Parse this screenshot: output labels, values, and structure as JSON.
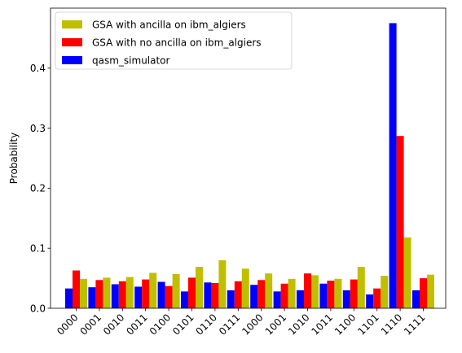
{
  "chart_data": {
    "type": "bar",
    "title": "",
    "xlabel": "",
    "ylabel": "Probability",
    "ylim": [
      0,
      0.5
    ],
    "yticks": [
      0.0,
      0.1,
      0.2,
      0.3,
      0.4
    ],
    "ytick_labels": [
      "0.0",
      "0.1",
      "0.2",
      "0.3",
      "0.4"
    ],
    "grid": false,
    "legend_position": "top-left",
    "categories": [
      "0000",
      "0001",
      "0010",
      "0011",
      "0100",
      "0101",
      "0110",
      "0111",
      "1000",
      "1001",
      "1010",
      "1011",
      "1100",
      "1101",
      "1110",
      "1111"
    ],
    "series": [
      {
        "name": "qasm_simulator",
        "color": "#0000ff",
        "values": [
          0.033,
          0.035,
          0.04,
          0.036,
          0.044,
          0.028,
          0.043,
          0.03,
          0.039,
          0.028,
          0.03,
          0.041,
          0.03,
          0.023,
          0.475,
          0.03
        ]
      },
      {
        "name": "GSA with no ancilla on ibm_algiers",
        "color": "#ff0000",
        "values": [
          0.063,
          0.047,
          0.045,
          0.048,
          0.037,
          0.051,
          0.042,
          0.045,
          0.047,
          0.041,
          0.058,
          0.046,
          0.048,
          0.033,
          0.287,
          0.05
        ]
      },
      {
        "name": "GSA with ancilla on ibm_algiers",
        "color": "#bfbf00",
        "values": [
          0.049,
          0.051,
          0.052,
          0.059,
          0.057,
          0.069,
          0.08,
          0.066,
          0.058,
          0.049,
          0.055,
          0.049,
          0.069,
          0.054,
          0.118,
          0.056
        ]
      }
    ],
    "legend_order": [
      "GSA with ancilla on ibm_algiers",
      "GSA with no ancilla on ibm_algiers",
      "qasm_simulator"
    ]
  }
}
